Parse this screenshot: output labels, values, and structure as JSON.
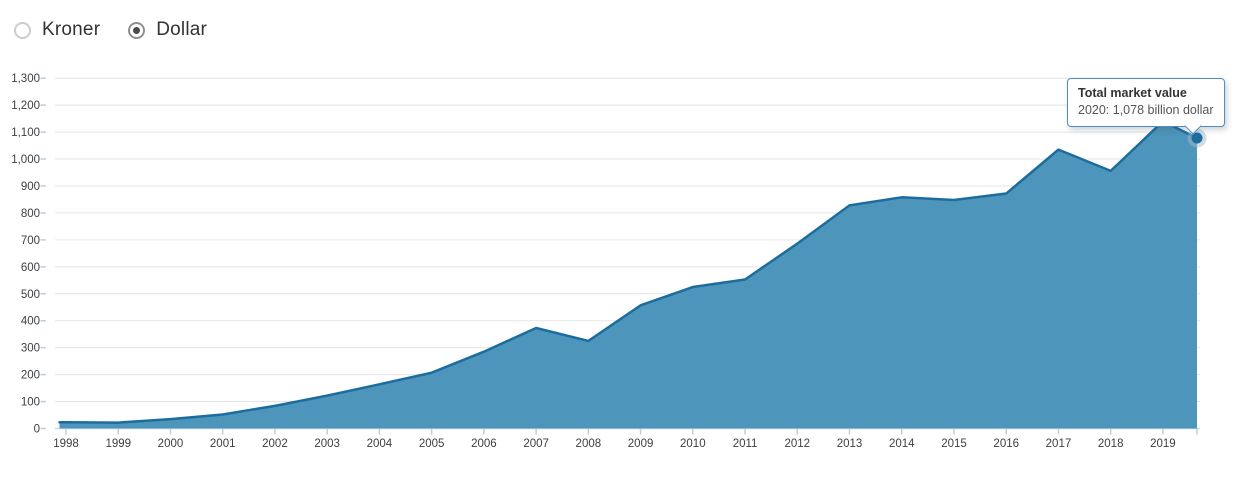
{
  "controls": {
    "options": [
      {
        "label": "Kroner",
        "selected": false
      },
      {
        "label": "Dollar",
        "selected": true
      }
    ]
  },
  "tooltip": {
    "title": "Total market value",
    "body": "2020: 1,078 billion dollar"
  },
  "chart_data": {
    "type": "area",
    "title": "Total market value",
    "unit": "billion dollar",
    "x": [
      1998,
      1999,
      2000,
      2001,
      2002,
      2003,
      2004,
      2005,
      2006,
      2007,
      2008,
      2009,
      2010,
      2011,
      2012,
      2013,
      2014,
      2015,
      2016,
      2017,
      2018,
      2019,
      2020
    ],
    "values": [
      23,
      22,
      35,
      52,
      84,
      122,
      164,
      207,
      285,
      373,
      325,
      457,
      525,
      553,
      686,
      828,
      858,
      848,
      872,
      1035,
      956,
      1140,
      1078
    ],
    "xtick_labels": [
      "1998",
      "1999",
      "2000",
      "2001",
      "2002",
      "2003",
      "2004",
      "2005",
      "2006",
      "2007",
      "2008",
      "2009",
      "2010",
      "2011",
      "2012",
      "2013",
      "2014",
      "2015",
      "2016",
      "2017",
      "2018",
      "2019"
    ],
    "ylim": [
      0,
      1300
    ],
    "ytick_step": 100,
    "grid": true,
    "legend": "none",
    "highlight": {
      "year": 2020,
      "value": 1078
    },
    "colors": {
      "area_fill": "#4e95bb",
      "line": "#1c6d9e",
      "marker": "#1d6d9d",
      "marker_halo": "#9fb9cf",
      "grid": "#e5e5e5",
      "axis_line": "#c9d8e8",
      "tick": "#b9cfe4",
      "label": "#3f3f3f",
      "tooltip_border": "#4d8fc4"
    }
  }
}
